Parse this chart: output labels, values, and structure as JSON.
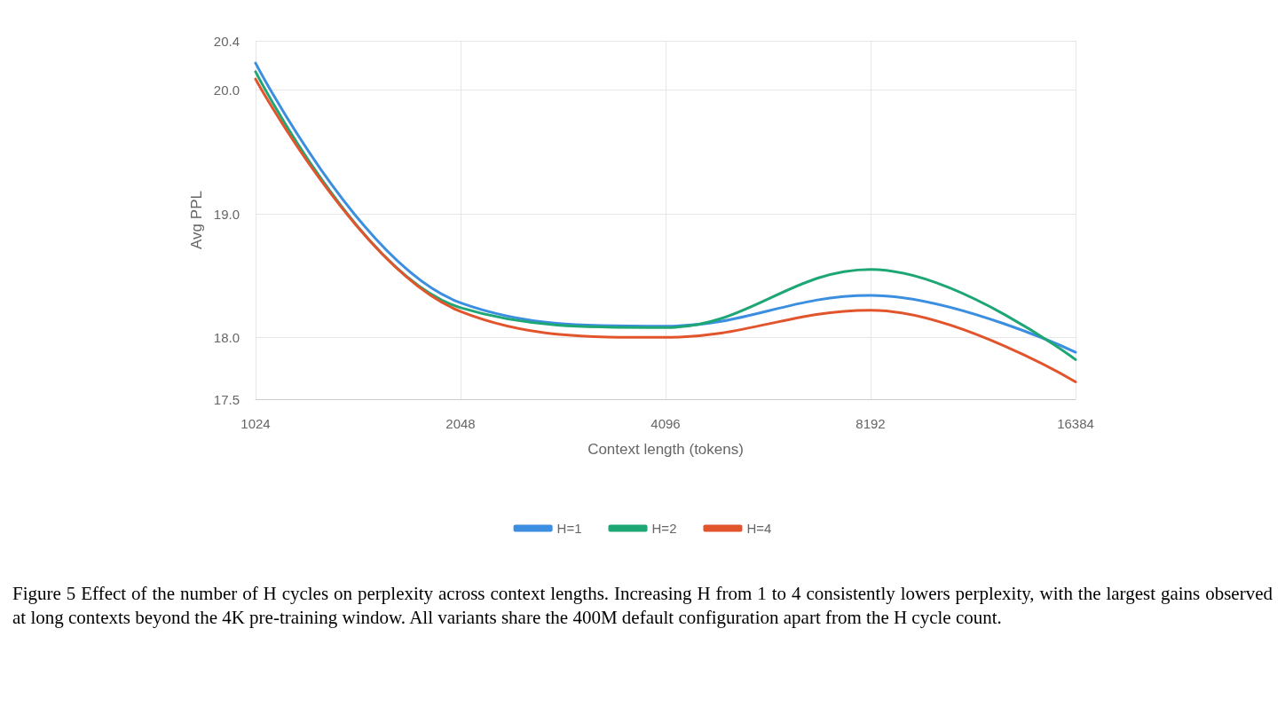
{
  "chart_data": {
    "type": "line",
    "xlabel": "Context length (tokens)",
    "ylabel": "Avg PPL",
    "categories": [
      "1024",
      "2048",
      "4096",
      "8192",
      "16384"
    ],
    "series": [
      {
        "name": "H=1",
        "color": "#3b8ee0",
        "values": [
          20.22,
          18.28,
          18.09,
          18.34,
          17.88
        ]
      },
      {
        "name": "H=2",
        "color": "#1ea774",
        "values": [
          20.15,
          18.24,
          18.08,
          18.55,
          17.82
        ]
      },
      {
        "name": "H=4",
        "color": "#e2552c",
        "values": [
          20.09,
          18.21,
          18.0,
          18.22,
          17.64
        ]
      }
    ],
    "ylim": [
      17.5,
      20.4
    ],
    "yticks": [
      17.5,
      {
        "value": 18,
        "label": "18.0"
      },
      {
        "value": 19,
        "label": "19.0"
      },
      {
        "value": 20,
        "label": "20.0"
      },
      20.4
    ],
    "grid": true,
    "legend": "bottom",
    "marker": "none",
    "line_style": "solid",
    "annotations": [
      "Figure 5 Effect of the number of H cycles on perplexity across context lengths. Increasing H from 1 to 4 consistently lowers perplexity, with the largest gains observed at long contexts beyond the 4K pre-training window. All variants share the 400M default configuration apart from the H cycle count."
    ]
  }
}
